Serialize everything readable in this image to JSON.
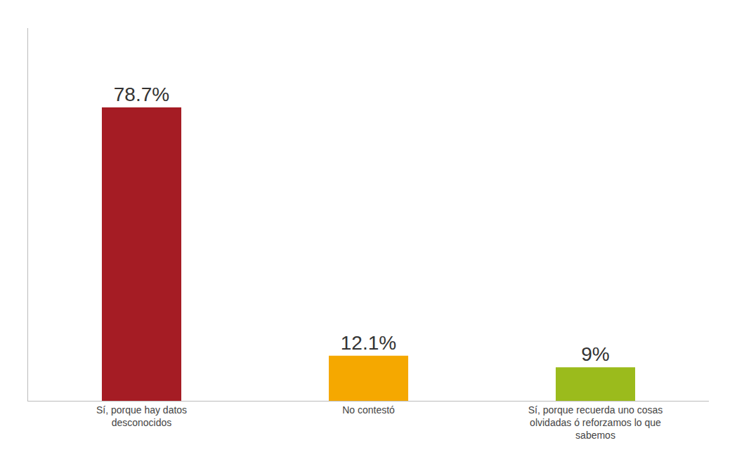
{
  "chart_data": {
    "type": "bar",
    "categories": [
      "Sí, porque hay datos desconocidos",
      "No contestó",
      "Sí, porque recuerda uno cosas olvidadas ó reforzamos lo que sabemos"
    ],
    "values": [
      78.7,
      12.1,
      9
    ],
    "value_labels": [
      "78.7%",
      "12.1%",
      "9%"
    ],
    "colors": [
      "#a51c24",
      "#f5a800",
      "#9bbb1c"
    ],
    "ylim": [
      0,
      100
    ],
    "data_labels": true,
    "tick_labels": "x",
    "grid": false
  }
}
